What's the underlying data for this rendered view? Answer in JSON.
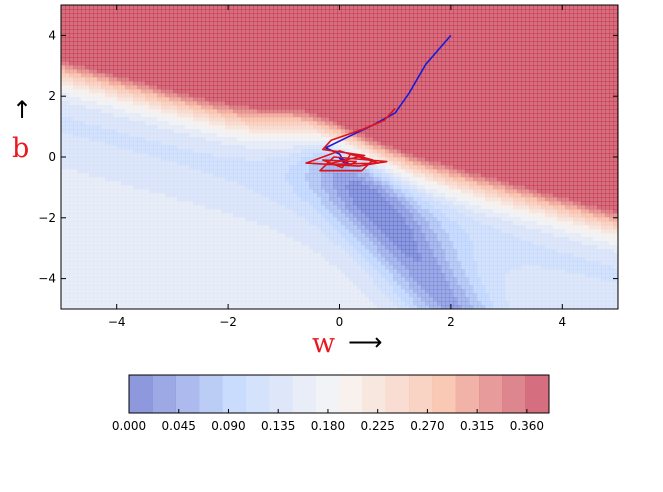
{
  "chart_data": {
    "type": "contour",
    "xlabel": "w",
    "ylabel": "b",
    "xlabel_arrow": "⟶",
    "ylabel_arrow": "↑",
    "xlim": [
      -5,
      5
    ],
    "ylim": [
      -5,
      5
    ],
    "xticks": [
      -4,
      -2,
      0,
      2,
      4
    ],
    "yticks": [
      -4,
      -2,
      0,
      2,
      4
    ],
    "xtick_labels": [
      "−4",
      "−2",
      "0",
      "2",
      "4"
    ],
    "ytick_labels": [
      "−4",
      "−2",
      "0",
      "2",
      "4"
    ],
    "colormap": [
      "#3b4cc0",
      "#aac7fd",
      "#f2f0ee",
      "#f7a889",
      "#b40426"
    ],
    "colorbar": {
      "range": [
        0.0,
        0.38
      ],
      "ticks": [
        0.0,
        0.045,
        0.09,
        0.135,
        0.18,
        0.225,
        0.27,
        0.315,
        0.36
      ],
      "tick_labels": [
        "0.000",
        "0.045",
        "0.090",
        "0.135",
        "0.180",
        "0.225",
        "0.270",
        "0.315",
        "0.360"
      ],
      "orientation": "horizontal"
    },
    "series": [
      {
        "color": "#1a1adc",
        "points": [
          [
            2.0,
            4.0
          ],
          [
            1.55,
            3.05
          ],
          [
            1.25,
            2.1
          ],
          [
            1.0,
            1.45
          ],
          [
            0.6,
            1.05
          ],
          [
            0.2,
            0.7
          ],
          [
            -0.25,
            0.3
          ],
          [
            0.0,
            0.1
          ],
          [
            0.05,
            -0.05
          ],
          [
            0.1,
            -0.15
          ],
          [
            0.0,
            -0.05
          ],
          [
            0.1,
            -0.1
          ],
          [
            0.15,
            -0.2
          ],
          [
            0.05,
            -0.15
          ],
          [
            0.12,
            -0.22
          ]
        ]
      },
      {
        "color": "#d9141c",
        "points": [
          [
            1.0,
            1.6
          ],
          [
            0.8,
            1.2
          ],
          [
            0.4,
            0.9
          ],
          [
            -0.15,
            0.55
          ],
          [
            -0.3,
            0.25
          ],
          [
            0.45,
            0.05
          ],
          [
            -0.25,
            -0.25
          ],
          [
            0.7,
            -0.2
          ],
          [
            0.0,
            0.2
          ],
          [
            -0.6,
            -0.2
          ],
          [
            0.35,
            -0.3
          ],
          [
            0.85,
            -0.15
          ],
          [
            -0.1,
            0.0
          ],
          [
            -0.35,
            -0.45
          ],
          [
            0.4,
            -0.45
          ],
          [
            0.6,
            -0.1
          ],
          [
            0.2,
            0.1
          ],
          [
            0.05,
            -0.35
          ],
          [
            -0.3,
            -0.1
          ],
          [
            0.3,
            -0.15
          ],
          [
            0.15,
            -0.3
          ]
        ]
      }
    ]
  }
}
